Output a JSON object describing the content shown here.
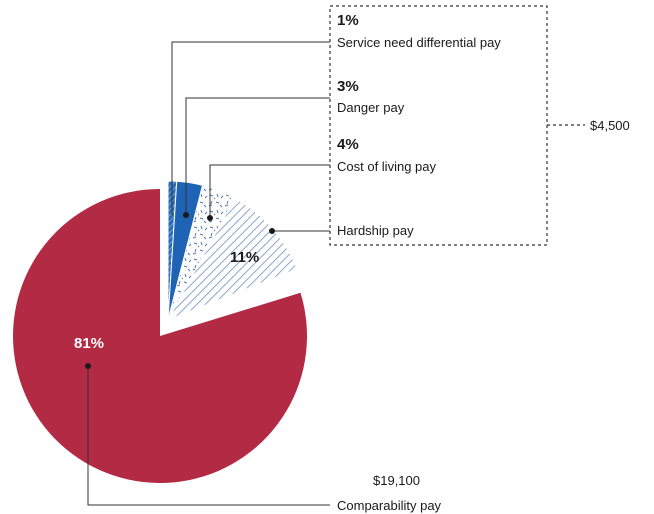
{
  "chart_data": {
    "type": "pie",
    "title": "",
    "slices": [
      {
        "label": "Comparability pay",
        "value": 81,
        "value_label": "81%",
        "amount_label": "$19,100",
        "color": "#b22a43",
        "fill": "solid",
        "exploded": true
      },
      {
        "label": "Service need differential pay",
        "value": 1,
        "value_label": "1%",
        "color": "#3f7ec2",
        "fill": "hatch-light"
      },
      {
        "label": "Danger pay",
        "value": 3,
        "value_label": "3%",
        "color": "#1f63b5",
        "fill": "solid"
      },
      {
        "label": "Cost of living pay",
        "value": 4,
        "value_label": "4%",
        "color": "#dce8f4",
        "fill": "speckle"
      },
      {
        "label": "Hardship pay",
        "value": 11,
        "value_label": "11%",
        "color": "#dce8f4",
        "fill": "hatch"
      }
    ],
    "group_amount_label": "$4,500",
    "legend": "none"
  }
}
